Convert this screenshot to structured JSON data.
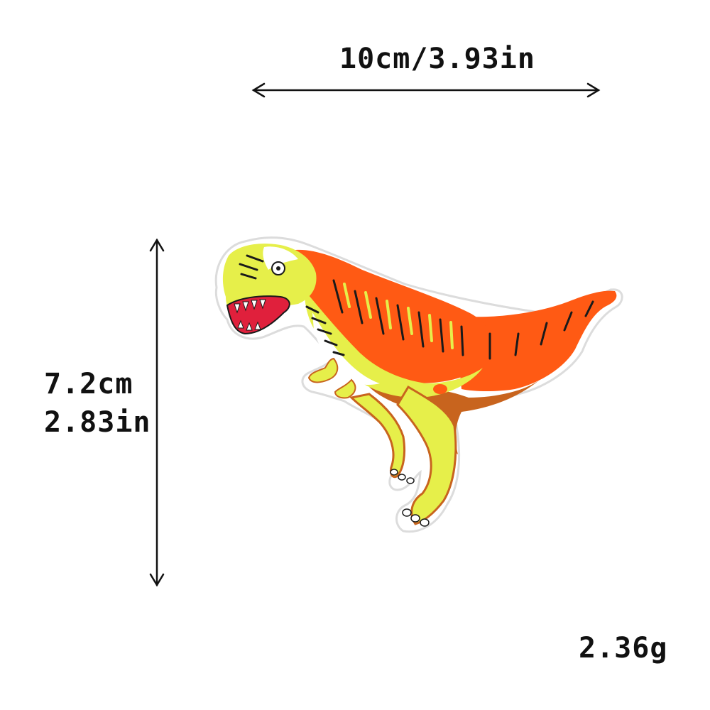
{
  "dimensions": {
    "width_label": "10cm/3.93in",
    "height_label_cm": "7.2cm",
    "height_label_in": "2.83in",
    "weight_label": "2.36g"
  },
  "patch": {
    "icon": "dinosaur-icon",
    "colors": {
      "orange": "#ff5a14",
      "yellow_green": "#e6ef4a",
      "brown": "#c8641e",
      "dark_stitch": "#1a1a1a",
      "mouth_red": "#e0203c",
      "white": "#ffffff",
      "outline": "#e8e8e8"
    }
  }
}
